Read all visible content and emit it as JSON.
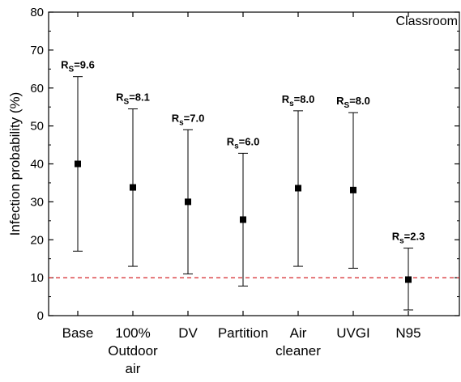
{
  "chart_data": {
    "type": "scatter",
    "title": "",
    "panel_label": "Classroom",
    "xlabel": "",
    "ylabel": "Infection probability (%)",
    "ylim": [
      0,
      80
    ],
    "yticks": [
      0,
      10,
      20,
      30,
      40,
      50,
      60,
      70,
      80
    ],
    "categories": [
      [
        "Base"
      ],
      [
        "100%",
        "Outdoor",
        "air"
      ],
      [
        "DV"
      ],
      [
        "Partition"
      ],
      [
        "Air",
        "cleaner"
      ],
      [
        "UVGI"
      ],
      [
        "N95"
      ]
    ],
    "series": [
      {
        "values": [
          40.0,
          33.8,
          30.0,
          25.3,
          33.6,
          33.1,
          9.5
        ],
        "error_low": [
          17.0,
          13.0,
          11.0,
          7.8,
          13.0,
          12.5,
          1.5
        ],
        "error_high": [
          63.0,
          54.5,
          49.0,
          42.8,
          54.0,
          53.5,
          17.8
        ],
        "marker": "square",
        "color": "#000000"
      }
    ],
    "annotations": [
      {
        "main": "R",
        "sub": "S",
        "text": "=9.6"
      },
      {
        "main": "R",
        "sub": "S",
        "text": "=8.1"
      },
      {
        "main": "R",
        "sub": "s",
        "text": "=7.0"
      },
      {
        "main": "R",
        "sub": "s",
        "text": "=6.0"
      },
      {
        "main": "R",
        "sub": "s",
        "text": "=8.0"
      },
      {
        "main": "R",
        "sub": "S",
        "text": "=8.0"
      },
      {
        "main": "R",
        "sub": "s",
        "text": "=2.3"
      }
    ],
    "reference_line": {
      "y": 10,
      "color": "#d62728",
      "style": "dashed"
    },
    "grid": false,
    "legend": "none"
  }
}
